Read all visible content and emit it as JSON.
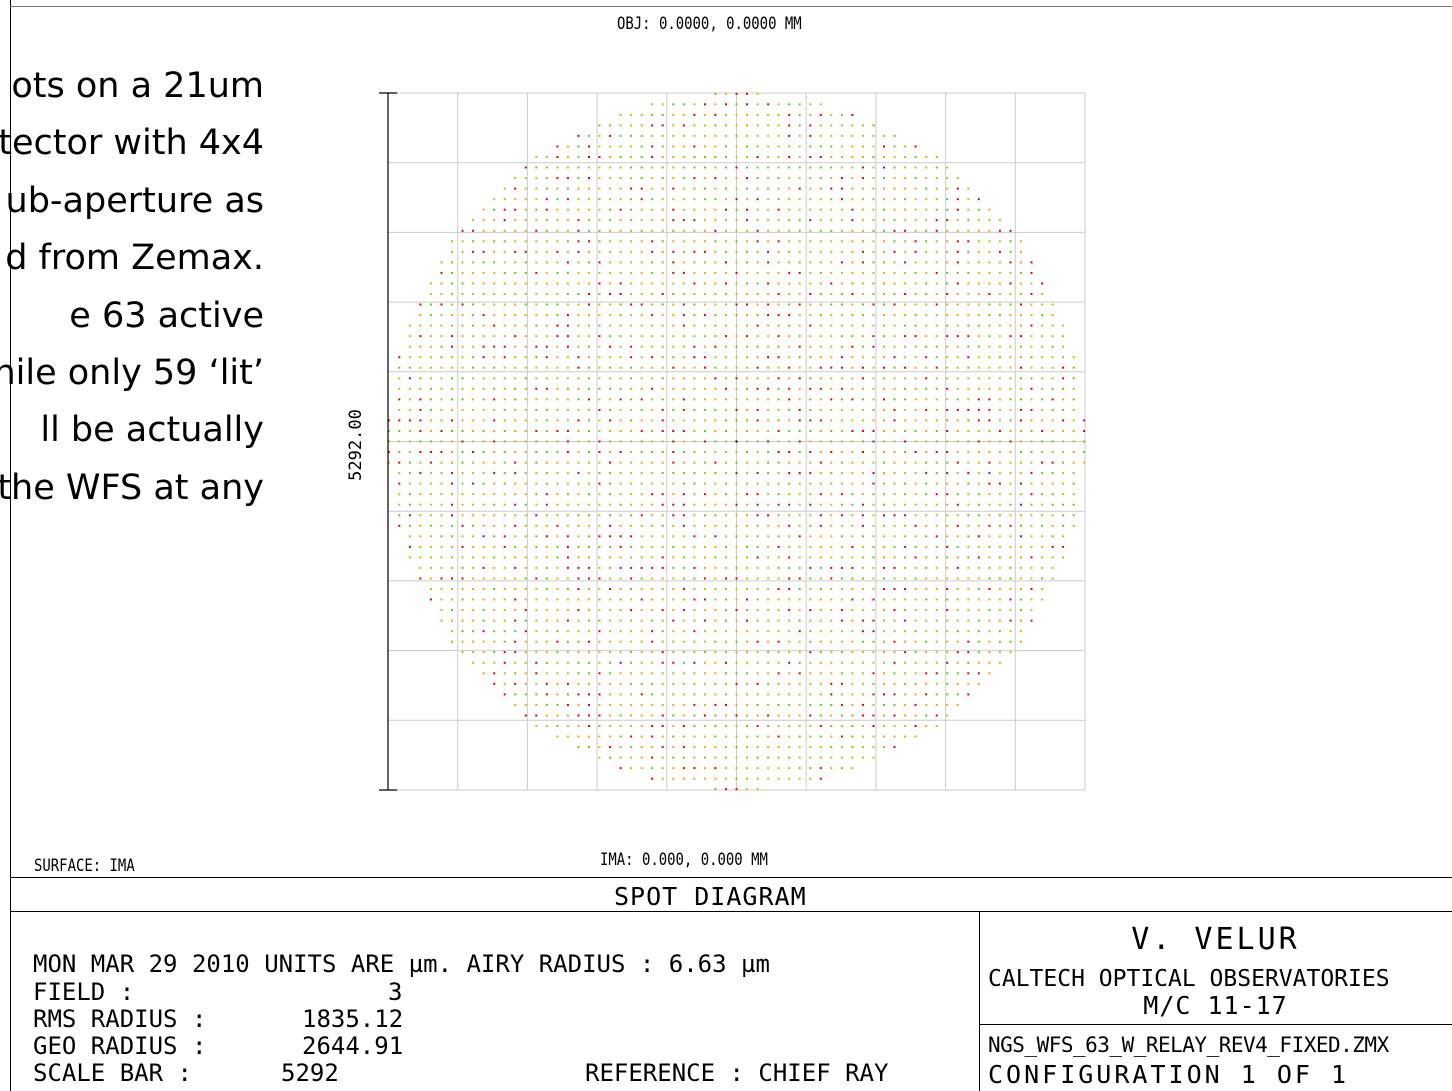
{
  "slide_text": {
    "lines": [
      "ots on a 21um",
      "tector with 4x4",
      "ub-aperture as",
      "d from Zemax.",
      "e 63 active",
      "hile only 59 ‘lit’",
      "ll be actually",
      "the WFS at any"
    ]
  },
  "plot": {
    "obj_label": "OBJ: 0.0000, 0.0000 MM",
    "ima_label": "IMA: 0.000, 0.000 MM",
    "surface_label": "SURFACE: IMA",
    "scale_label": "5292.00"
  },
  "footer": {
    "title": "SPOT DIAGRAM",
    "date_line": "MON MAR 29 2010  UNITS ARE µm.  AIRY RADIUS : 6.63 µm",
    "rows": [
      {
        "label": "FIELD        :",
        "value": "3"
      },
      {
        "label": "RMS RADIUS :",
        "value": "1835.12"
      },
      {
        "label": "GEO RADIUS :",
        "value": "2644.91"
      },
      {
        "label": "SCALE BAR  :",
        "value": "5292"
      }
    ],
    "reference": "REFERENCE  : CHIEF RAY",
    "author": "V. VELUR",
    "org": "CALTECH OPTICAL OBSERVATORIES",
    "mc": "M/C 11-17",
    "file": "NGS_WFS_63_W_RELAY_REV4_FIXED.ZMX",
    "config": "CONFIGURATION 1 OF 1"
  },
  "colors": {
    "spot_primary": "#d4b800",
    "spot_secondary": "#66cc00",
    "spot_tertiary": "#e00000",
    "chief": "#000000",
    "grid": "#cccccc"
  },
  "chart_data": {
    "type": "scatter",
    "title": "SPOT DIAGRAM",
    "units": "µm",
    "field": 3,
    "airy_radius": 6.63,
    "rms_radius": 1835.12,
    "geo_radius": 2644.91,
    "scale_bar": 5292,
    "xlim": [
      -2646,
      2646
    ],
    "ylim": [
      -2646,
      2646
    ],
    "grid": true,
    "spot_pattern": {
      "shape": "circular pupil grid",
      "center": [
        0,
        0
      ],
      "radius": 2644.91,
      "spacing": 80
    },
    "series": [
      {
        "name": "",
        "color": "#d4b800"
      },
      {
        "name": "",
        "color": "#66cc00"
      },
      {
        "name": "",
        "color": "#e00000"
      }
    ]
  }
}
